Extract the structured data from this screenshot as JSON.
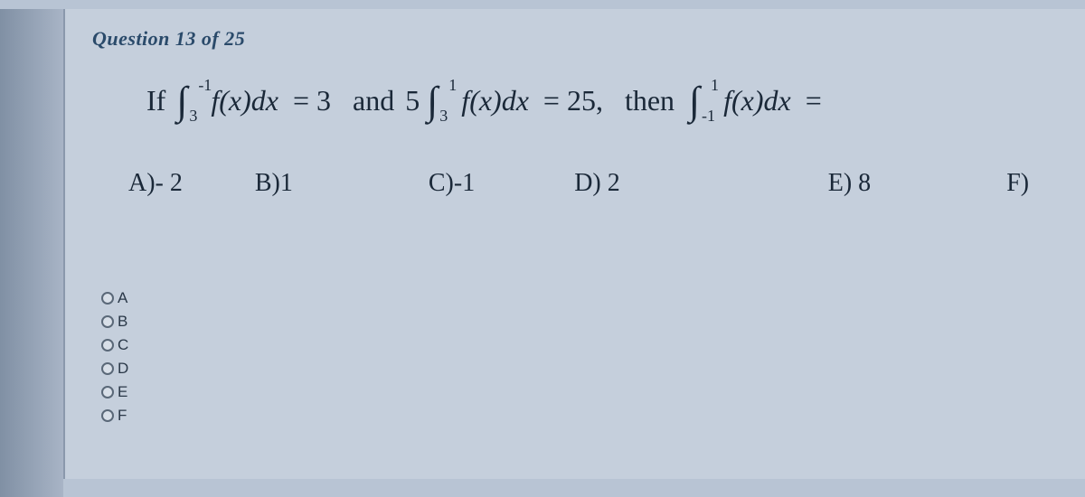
{
  "colors": {
    "page_bg": "#b8c4d4",
    "panel_bg": "#c5cfdc",
    "header_text": "#2a4a6a",
    "body_text": "#1a2838",
    "radio_border": "#5a6878",
    "radio_bg": "#d8dfe8",
    "edge_start": "#8090a4",
    "edge_end": "#a8b4c6"
  },
  "typography": {
    "header_fontsize": 22,
    "body_fontsize": 32,
    "answer_fontsize": 28,
    "radio_fontsize": 17,
    "integral_sign_fontsize": 44,
    "bounds_fontsize": 18
  },
  "header": "Question 13 of 25",
  "question": {
    "prefix": "If",
    "integral1": {
      "lower": "3",
      "upper": "-1",
      "integrand_fn": "f",
      "integrand_var": "(x)",
      "dvar": "dx"
    },
    "eq1_rhs": " = 3",
    "connector": "and",
    "coeff2": "5",
    "integral2": {
      "lower": "3",
      "upper": "1",
      "integrand_fn": "f",
      "integrand_var": "(x)",
      "dvar": "dx"
    },
    "eq2_rhs": " = 25,",
    "then_text": "then",
    "integral3": {
      "lower": "-1",
      "upper": "1",
      "integrand_fn": "f",
      "integrand_var": "(x)",
      "dvar": "dx"
    },
    "eq3_rhs": " ="
  },
  "answers": {
    "a": "A)- 2",
    "b": "B)1",
    "c": "C)-1",
    "d": "D) 2",
    "e": "E) 8",
    "f": "F)"
  },
  "radio_options": [
    "A",
    "B",
    "C",
    "D",
    "E",
    "F"
  ]
}
